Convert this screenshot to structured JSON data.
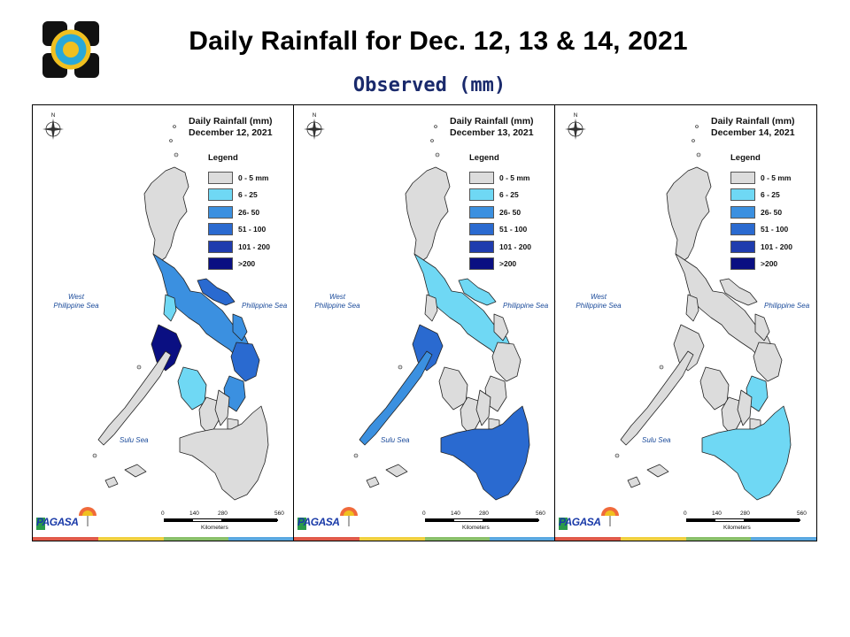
{
  "header": {
    "title": "Daily Rainfall for Dec. 12, 13 & 14, 2021",
    "subtitle": "Observed (mm)"
  },
  "legend": {
    "title": "Legend",
    "items": [
      {
        "label": "0 - 5 mm",
        "color": "#dcdcdc"
      },
      {
        "label": "6 - 25",
        "color": "#6fd8f4"
      },
      {
        "label": "26- 50",
        "color": "#3b90e0"
      },
      {
        "label": "51 - 100",
        "color": "#2a6ad0"
      },
      {
        "label": "101 - 200",
        "color": "#1f3cae"
      },
      {
        "label": ">200",
        "color": "#0a0f82"
      }
    ]
  },
  "maps": [
    {
      "title_line1": "Daily Rainfall (mm)",
      "title_line2": "December 12, 2021"
    },
    {
      "title_line1": "Daily Rainfall (mm)",
      "title_line2": "December 13, 2021"
    },
    {
      "title_line1": "Daily Rainfall (mm)",
      "title_line2": "December 14, 2021"
    }
  ],
  "labels": {
    "west_sea_1": "West",
    "west_sea_2": "Philippine Sea",
    "east_sea": "Philippine Sea",
    "sulu_sea": "Sulu Sea"
  },
  "scale": {
    "ticks": [
      "0",
      "140",
      "280",
      "560"
    ],
    "unit": "Kilometers"
  },
  "branding": {
    "agency": "PAGASA",
    "strip_colors": [
      "#e05a4a",
      "#f0d040",
      "#8ac06a",
      "#5aa8e0"
    ]
  }
}
